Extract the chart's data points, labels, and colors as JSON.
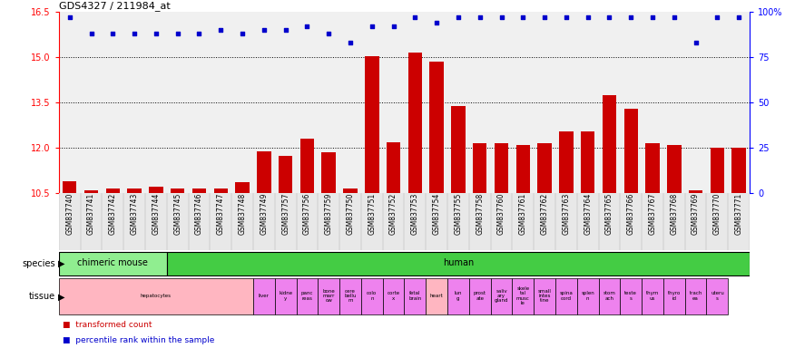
{
  "title": "GDS4327 / 211984_at",
  "samples": [
    "GSM837740",
    "GSM837741",
    "GSM837742",
    "GSM837743",
    "GSM837744",
    "GSM837745",
    "GSM837746",
    "GSM837747",
    "GSM837748",
    "GSM837749",
    "GSM837757",
    "GSM837756",
    "GSM837759",
    "GSM837750",
    "GSM837751",
    "GSM837752",
    "GSM837753",
    "GSM837754",
    "GSM837755",
    "GSM837758",
    "GSM837760",
    "GSM837761",
    "GSM837762",
    "GSM837763",
    "GSM837764",
    "GSM837765",
    "GSM837766",
    "GSM837767",
    "GSM837768",
    "GSM837769",
    "GSM837770",
    "GSM837771"
  ],
  "bar_values": [
    10.9,
    10.6,
    10.65,
    10.65,
    10.7,
    10.65,
    10.65,
    10.65,
    10.85,
    11.9,
    11.75,
    12.3,
    11.85,
    10.65,
    15.05,
    12.2,
    15.15,
    14.85,
    13.4,
    12.15,
    12.15,
    12.1,
    12.15,
    12.55,
    12.55,
    13.75,
    13.3,
    12.15,
    12.1,
    10.6,
    12.0,
    12.0
  ],
  "percentile_values": [
    97,
    88,
    88,
    88,
    88,
    88,
    88,
    90,
    88,
    90,
    90,
    92,
    88,
    83,
    92,
    92,
    97,
    94,
    97,
    97,
    97,
    97,
    97,
    97,
    97,
    97,
    97,
    97,
    97,
    83,
    97,
    97
  ],
  "bar_color": "#cc0000",
  "dot_color": "#0000cc",
  "ylim_left": [
    10.5,
    16.5
  ],
  "ylim_right": [
    0,
    100
  ],
  "yticks_left": [
    10.5,
    12.0,
    13.5,
    15.0,
    16.5
  ],
  "yticks_right": [
    0,
    25,
    50,
    75,
    100
  ],
  "grid_values": [
    12.0,
    13.5,
    15.0
  ],
  "bg_color": "#e8e8e8",
  "species_data": [
    {
      "label": "chimeric mouse",
      "start": 0,
      "end": 5,
      "color": "#90ee90"
    },
    {
      "label": "human",
      "start": 5,
      "end": 32,
      "color": "#44cc44"
    }
  ],
  "tissue_data": [
    {
      "label": "hepatocytes",
      "start": 0,
      "end": 9,
      "color": "#ffb6c1"
    },
    {
      "label": "liver",
      "start": 9,
      "end": 10,
      "color": "#ee82ee"
    },
    {
      "label": "kidne\ny",
      "start": 10,
      "end": 11,
      "color": "#ee82ee"
    },
    {
      "label": "panc\nreas",
      "start": 11,
      "end": 12,
      "color": "#ee82ee"
    },
    {
      "label": "bone\nmarr\now",
      "start": 12,
      "end": 13,
      "color": "#ee82ee"
    },
    {
      "label": "cere\nbellu\nm",
      "start": 13,
      "end": 14,
      "color": "#ee82ee"
    },
    {
      "label": "colo\nn",
      "start": 14,
      "end": 15,
      "color": "#ee82ee"
    },
    {
      "label": "corte\nx",
      "start": 15,
      "end": 16,
      "color": "#ee82ee"
    },
    {
      "label": "fetal\nbrain",
      "start": 16,
      "end": 17,
      "color": "#ee82ee"
    },
    {
      "label": "heart",
      "start": 17,
      "end": 18,
      "color": "#ffb6c1"
    },
    {
      "label": "lun\ng",
      "start": 18,
      "end": 19,
      "color": "#ee82ee"
    },
    {
      "label": "prost\nate",
      "start": 19,
      "end": 20,
      "color": "#ee82ee"
    },
    {
      "label": "saliv\nary\ngland",
      "start": 20,
      "end": 21,
      "color": "#ee82ee"
    },
    {
      "label": "skele\ntal\nmusc\nle",
      "start": 21,
      "end": 22,
      "color": "#ee82ee"
    },
    {
      "label": "small\nintes\ntine",
      "start": 22,
      "end": 23,
      "color": "#ee82ee"
    },
    {
      "label": "spina\ncord",
      "start": 23,
      "end": 24,
      "color": "#ee82ee"
    },
    {
      "label": "splen\nn",
      "start": 24,
      "end": 25,
      "color": "#ee82ee"
    },
    {
      "label": "stom\nach",
      "start": 25,
      "end": 26,
      "color": "#ee82ee"
    },
    {
      "label": "teste\ns",
      "start": 26,
      "end": 27,
      "color": "#ee82ee"
    },
    {
      "label": "thym\nus",
      "start": 27,
      "end": 28,
      "color": "#ee82ee"
    },
    {
      "label": "thyro\nid",
      "start": 28,
      "end": 29,
      "color": "#ee82ee"
    },
    {
      "label": "trach\nea",
      "start": 29,
      "end": 30,
      "color": "#ee82ee"
    },
    {
      "label": "uteru\ns",
      "start": 30,
      "end": 31,
      "color": "#ee82ee"
    }
  ],
  "legend_items": [
    {
      "label": "transformed count",
      "color": "#cc0000"
    },
    {
      "label": "percentile rank within the sample",
      "color": "#0000cc"
    }
  ]
}
